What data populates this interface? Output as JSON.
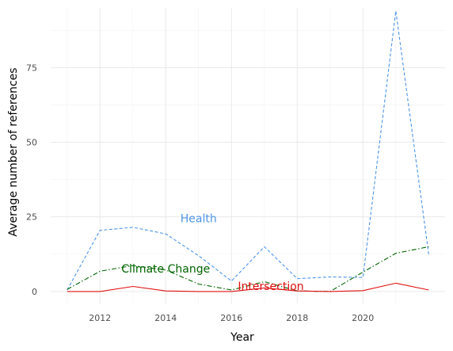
{
  "chart_data": {
    "type": "line",
    "xlabel": "Year",
    "ylabel": "Average number of references",
    "xlim": [
      2010.5,
      2022.5
    ],
    "ylim": [
      -4,
      95
    ],
    "x_ticks": [
      2012,
      2014,
      2016,
      2018,
      2020
    ],
    "y_ticks": [
      0,
      25,
      50,
      75
    ],
    "grid": true,
    "legend": "none",
    "x": [
      2011,
      2012,
      2013,
      2014,
      2015,
      2016,
      2017,
      2018,
      2019,
      2020,
      2021,
      2022
    ],
    "series": [
      {
        "name": "Health",
        "color": "#4e95e8",
        "dash": "dashed",
        "values": [
          0.5,
          20.5,
          21.5,
          19.3,
          12,
          3.5,
          15,
          4.3,
          4.9,
          4.7,
          94,
          12.5
        ],
        "label_at": [
          2015,
          24.5
        ]
      },
      {
        "name": "Climate Change",
        "color": "#006400",
        "dash": "dashdot",
        "values": [
          0.7,
          6.8,
          8.7,
          7.2,
          2.5,
          0.5,
          3.3,
          0.2,
          0,
          6.5,
          12.8,
          15
        ],
        "label_at": [
          2014,
          7.7
        ]
      },
      {
        "name": "Intersection",
        "color": "#e01010",
        "dash": "solid",
        "values": [
          0,
          0,
          1.7,
          0.2,
          0,
          0,
          1.2,
          0.2,
          0,
          0.3,
          2.8,
          0.5
        ],
        "label_at": [
          2017.2,
          1.8
        ]
      }
    ]
  }
}
